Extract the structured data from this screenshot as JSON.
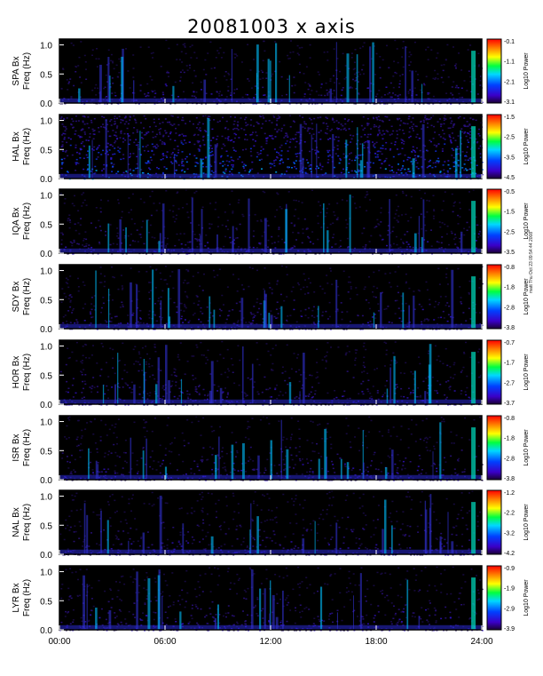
{
  "chart_data": {
    "type": "heatmap",
    "title": "20081003 x axis",
    "x_ticks": [
      "00:00",
      "06:00",
      "12:00",
      "18:00",
      "24:00"
    ],
    "y_ticks": [
      "0.0",
      "0.5",
      "1.0"
    ],
    "x_range_hours": [
      0,
      24
    ],
    "y_range_hz": [
      0,
      1.1
    ],
    "colorbar_label": "Log10 Power",
    "panels": [
      {
        "station": "SPA Bx",
        "ylabel": "Freq (Hz)",
        "cbar_ticks": [
          "-0.1",
          "-1.1",
          "-2.1",
          "-3.1"
        ]
      },
      {
        "station": "HAL Bx",
        "ylabel": "Freq (Hz)",
        "cbar_ticks": [
          "-1.5",
          "-2.5",
          "-3.5",
          "-4.5"
        ]
      },
      {
        "station": "IQA Bx",
        "ylabel": "Freq (Hz)",
        "cbar_ticks": [
          "-0.5",
          "-1.5",
          "-2.5",
          "-3.5"
        ]
      },
      {
        "station": "SDY Bx",
        "ylabel": "Freq (Hz)",
        "cbar_ticks": [
          "-0.8",
          "-1.8",
          "-2.8",
          "-3.8"
        ]
      },
      {
        "station": "HOR Bx",
        "ylabel": "Freq (Hz)",
        "cbar_ticks": [
          "-0.7",
          "-1.7",
          "-2.7",
          "-3.7"
        ]
      },
      {
        "station": "ISR Bx",
        "ylabel": "Freq (Hz)",
        "cbar_ticks": [
          "-0.8",
          "-1.8",
          "-2.8",
          "-3.8"
        ]
      },
      {
        "station": "NAL Bx",
        "ylabel": "Freq (Hz)",
        "cbar_ticks": [
          "-1.2",
          "-2.2",
          "-3.2",
          "-4.2"
        ]
      },
      {
        "station": "LYR Bx",
        "ylabel": "Freq (Hz)",
        "cbar_ticks": [
          "-0.9",
          "-1.9",
          "-2.9",
          "-3.9"
        ]
      }
    ],
    "side_note": "matt Thu Oct 23 09:54:44 2008"
  }
}
